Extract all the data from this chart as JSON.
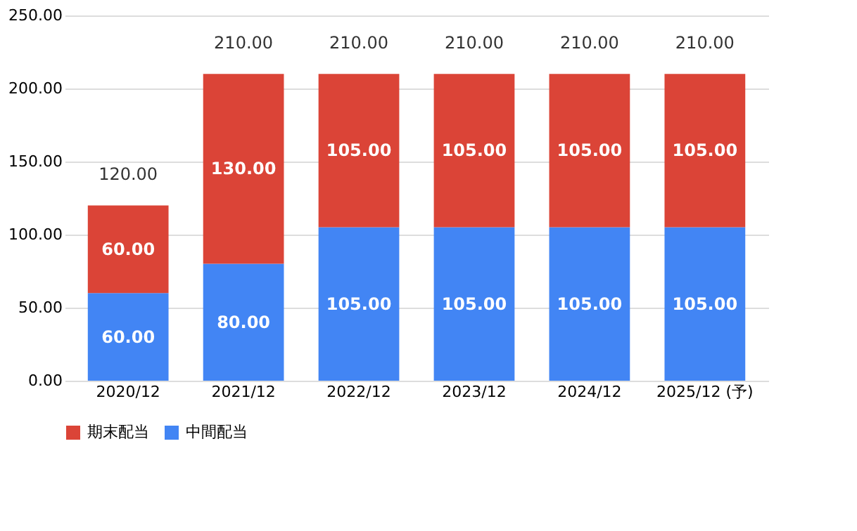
{
  "chart_data": {
    "type": "bar",
    "stacked": true,
    "categories": [
      "2020/12",
      "2021/12",
      "2022/12",
      "2023/12",
      "2024/12",
      "2025/12 (予)"
    ],
    "series": [
      {
        "name": "中間配当",
        "color": "#4285f4",
        "values": [
          60,
          80,
          105,
          105,
          105,
          105
        ],
        "value_labels": [
          "60.00",
          "80.00",
          "105.00",
          "105.00",
          "105.00",
          "105.00"
        ]
      },
      {
        "name": "期末配当",
        "color": "#db4437",
        "values": [
          60,
          130,
          105,
          105,
          105,
          105
        ],
        "value_labels": [
          "60.00",
          "130.00",
          "105.00",
          "105.00",
          "105.00",
          "105.00"
        ]
      }
    ],
    "totals": [
      "120.00",
      "210.00",
      "210.00",
      "210.00",
      "210.00",
      "210.00"
    ],
    "ylim": [
      0,
      250
    ],
    "yticks": [
      {
        "value": 0,
        "label": "0.00"
      },
      {
        "value": 50,
        "label": "50.00"
      },
      {
        "value": 100,
        "label": "100.00"
      },
      {
        "value": 150,
        "label": "150.00"
      },
      {
        "value": 200,
        "label": "200.00"
      },
      {
        "value": 250,
        "label": "250.00"
      }
    ],
    "grid": "y",
    "legend": "bottom"
  }
}
